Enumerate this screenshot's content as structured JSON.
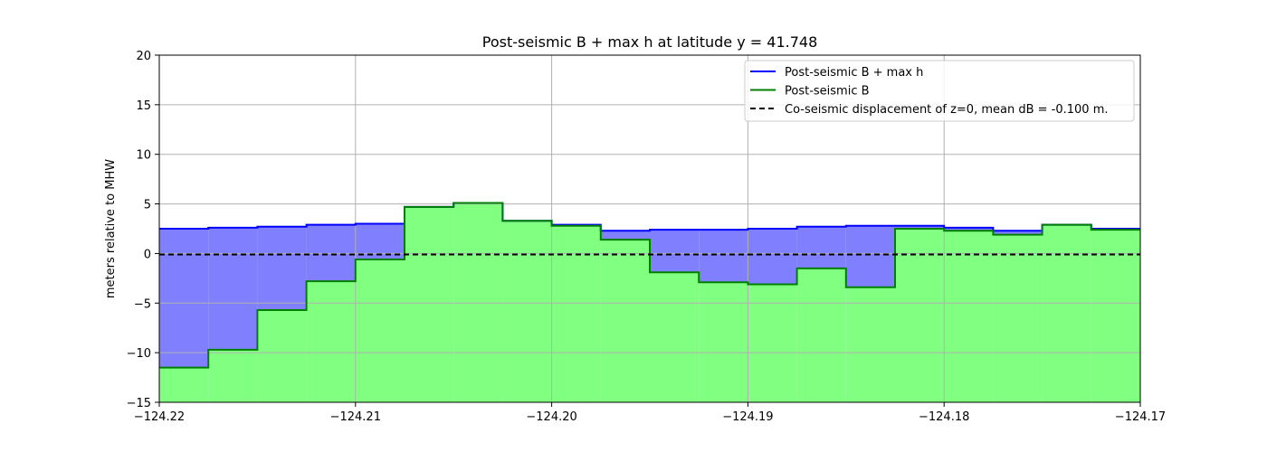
{
  "chart_data": {
    "type": "area",
    "title": "Post-seismic B + max h at latitude y = 41.748",
    "xlabel": "",
    "ylabel": "meters relative to MHW",
    "xlim": [
      -124.22,
      -124.17
    ],
    "ylim": [
      -15,
      20
    ],
    "x_ticks": [
      -124.22,
      -124.21,
      -124.2,
      -124.19,
      -124.18,
      -124.17
    ],
    "x_tick_labels": [
      "−124.22",
      "−124.21",
      "−124.20",
      "−124.19",
      "−124.18",
      "−124.17"
    ],
    "y_ticks": [
      -15,
      -10,
      -5,
      0,
      5,
      10,
      15,
      20
    ],
    "y_tick_labels": [
      "−15",
      "−10",
      "−5",
      "0",
      "5",
      "10",
      "15",
      "20"
    ],
    "grid": true,
    "legend_position": "top-right",
    "step_edges": [
      -124.22,
      -124.2175,
      -124.215,
      -124.2125,
      -124.21,
      -124.2075,
      -124.205,
      -124.2025,
      -124.2,
      -124.1975,
      -124.195,
      -124.1925,
      -124.19,
      -124.1875,
      -124.185,
      -124.1825,
      -124.18,
      -124.1775,
      -124.175,
      -124.1725,
      -124.17
    ],
    "series": [
      {
        "name": "Post-seismic B + max h",
        "color": "#0000ff",
        "fill_color": "#8080ff",
        "style": "solid",
        "values": [
          2.5,
          2.6,
          2.7,
          2.9,
          3.0,
          4.7,
          5.1,
          3.3,
          2.9,
          2.3,
          2.4,
          2.4,
          2.5,
          2.7,
          2.8,
          2.8,
          2.6,
          2.3,
          2.9,
          2.5
        ]
      },
      {
        "name": "Post-seismic B",
        "color": "#008000",
        "fill_color": "#80ff80",
        "style": "solid",
        "values": [
          -11.5,
          -9.7,
          -5.7,
          -2.8,
          -0.6,
          4.7,
          5.1,
          3.3,
          2.8,
          1.4,
          -1.9,
          -2.9,
          -3.1,
          -1.5,
          -3.4,
          2.5,
          2.3,
          1.9,
          2.9,
          2.4
        ]
      },
      {
        "name": "Co-seismic displacement of z=0, mean dB = -0.100 m.",
        "color": "#000000",
        "style": "dashed",
        "constant": -0.1
      }
    ]
  }
}
